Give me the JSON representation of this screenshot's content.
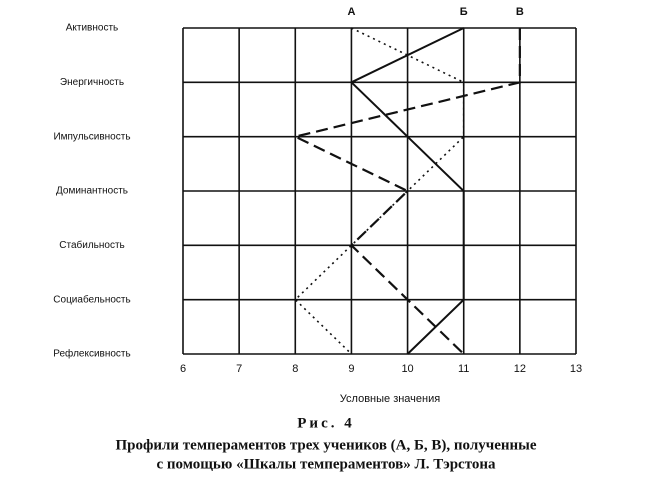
{
  "chart_data": {
    "type": "profile",
    "categories": [
      "Активность",
      "Энергичность",
      "Импульсивность",
      "Доминантность",
      "Стабильность",
      "Социабельность",
      "Рефлексивность"
    ],
    "xlim": [
      6,
      13
    ],
    "xticks": [
      6,
      7,
      8,
      9,
      10,
      11,
      12,
      13
    ],
    "xlabel": "Условные значения",
    "figure": "Рис. 4",
    "caption": [
      "Профили темпераментов трех учеников (А, Б, В), полученные",
      "с помощью «Шкалы темпераментов» Л. Тэрстона"
    ],
    "grid": true,
    "series": [
      {
        "name": "А",
        "color": "#111",
        "dash": "dotted",
        "values": [
          9,
          11,
          11,
          10,
          9,
          8,
          9
        ]
      },
      {
        "name": "Б",
        "color": "#111",
        "dash": "solid",
        "values": [
          11,
          9,
          10,
          11,
          11,
          11,
          10
        ]
      },
      {
        "name": "В",
        "color": "#111",
        "dash": "dashed",
        "values": [
          12,
          12,
          8,
          10,
          9,
          10,
          11
        ]
      }
    ]
  }
}
